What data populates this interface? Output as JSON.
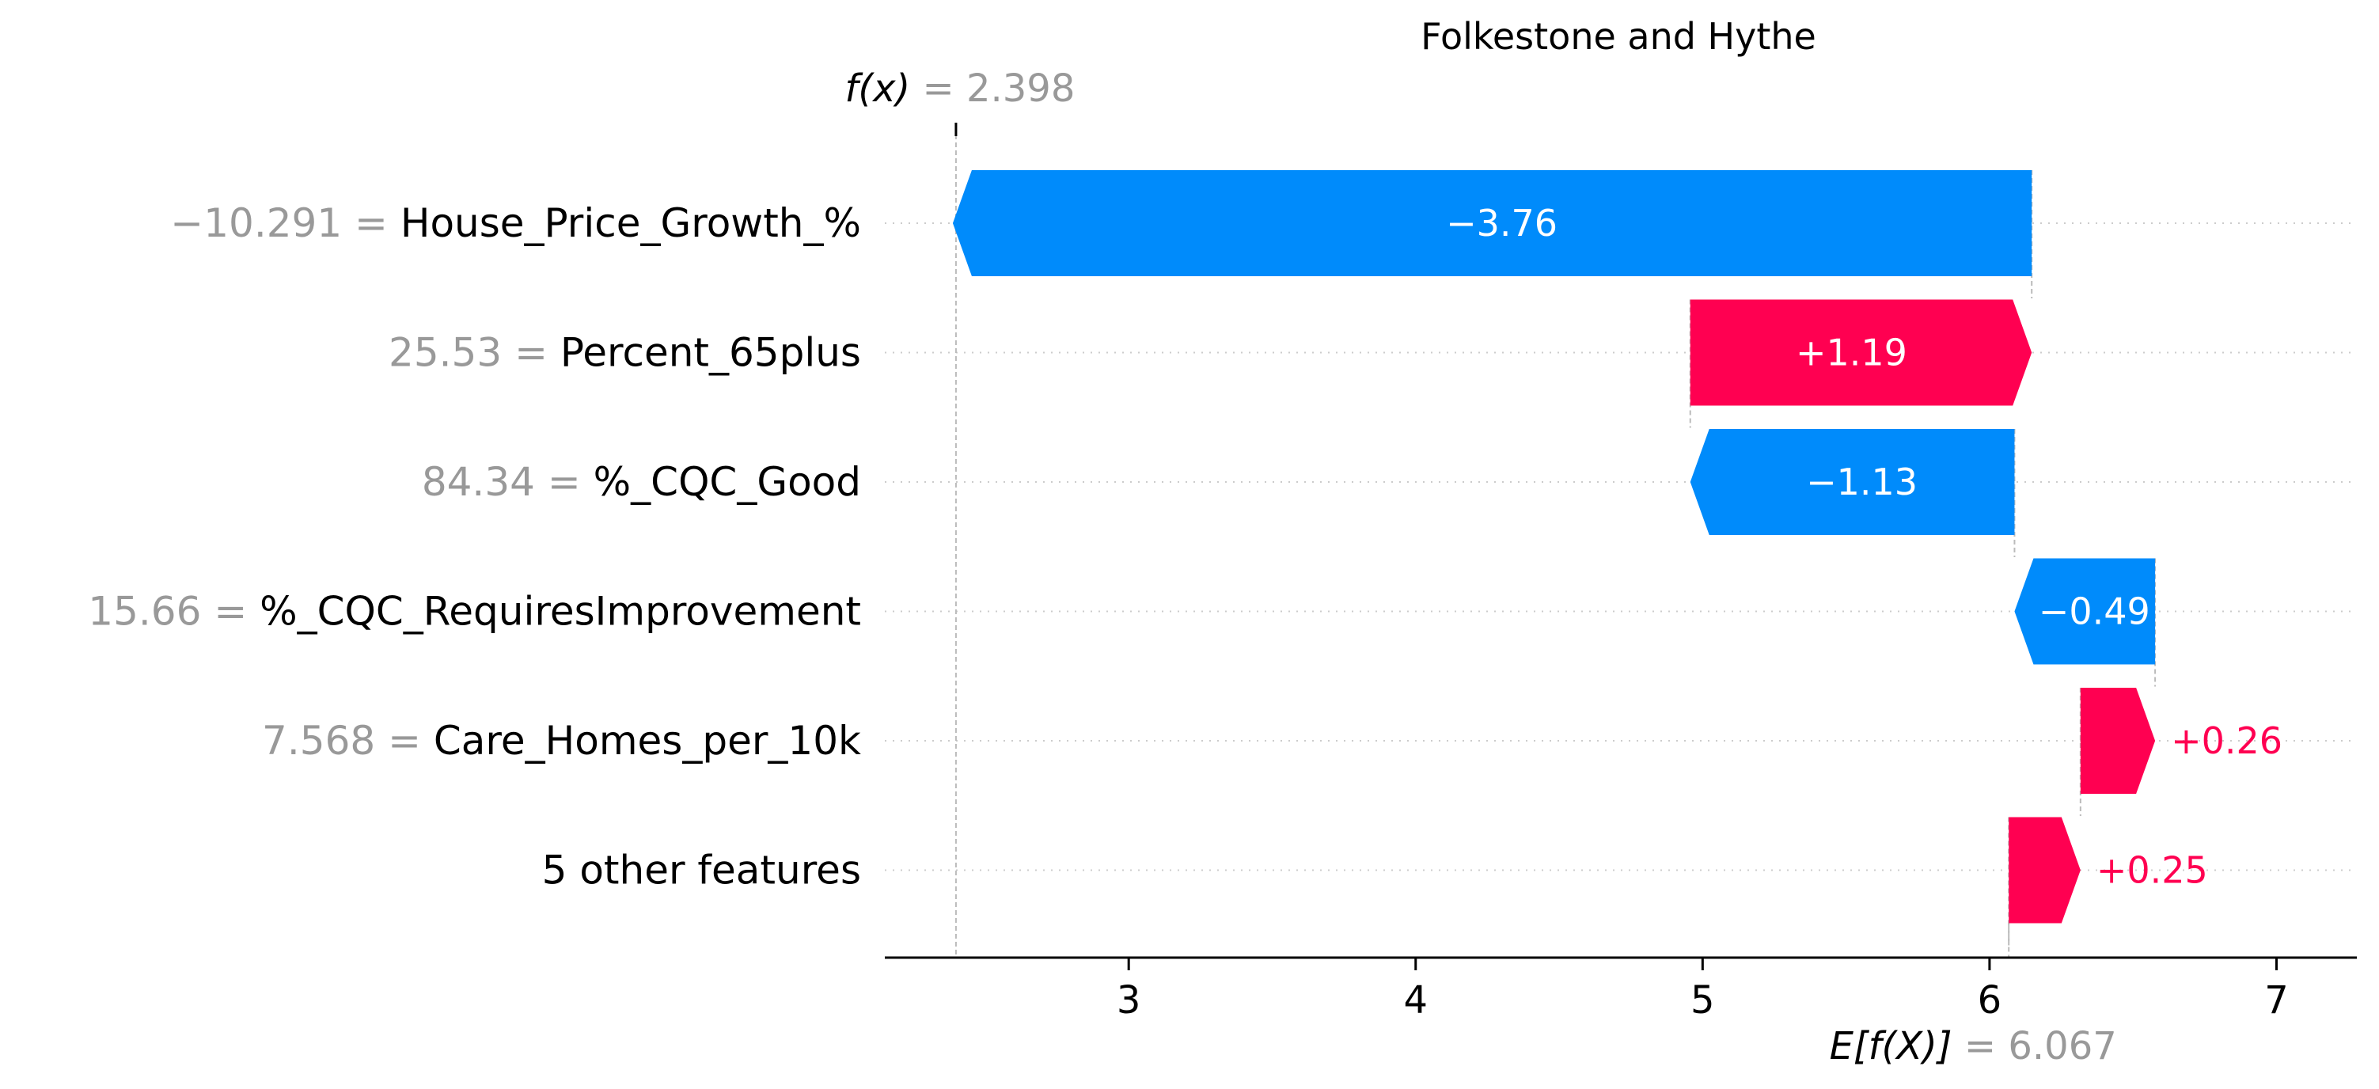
{
  "chart_data": {
    "type": "waterfall",
    "title": "Folkestone and Hythe",
    "fx": {
      "label": "f(x)",
      "value": "2.398",
      "numeric": 2.398
    },
    "base": {
      "label": "E[f(X)]",
      "value": "6.067",
      "numeric": 6.067
    },
    "features": [
      {
        "value": "−10.291",
        "name": "House_Price_Growth_%",
        "contribution": -3.76,
        "label": "−3.76"
      },
      {
        "value": "25.53",
        "name": "Percent_65plus",
        "contribution": 1.19,
        "label": "+1.19"
      },
      {
        "value": "84.34",
        "name": "%_CQC_Good",
        "contribution": -1.13,
        "label": "−1.13"
      },
      {
        "value": "15.66",
        "name": "%_CQC_RequiresImprovement",
        "contribution": -0.49,
        "label": "−0.49"
      },
      {
        "value": "7.568",
        "name": "Care_Homes_per_10k",
        "contribution": 0.26,
        "label": "+0.26"
      },
      {
        "value": "",
        "name": "5 other features",
        "contribution": 0.25,
        "label": "+0.25"
      }
    ],
    "xticks": [
      3,
      4,
      5,
      6,
      7
    ],
    "xlim": [
      2.15,
      7.28
    ],
    "colors": {
      "positive": "#ff0051",
      "negative": "#008bfb",
      "text_on_bar": "#ffffff"
    },
    "grid": "horizontal dotted"
  }
}
